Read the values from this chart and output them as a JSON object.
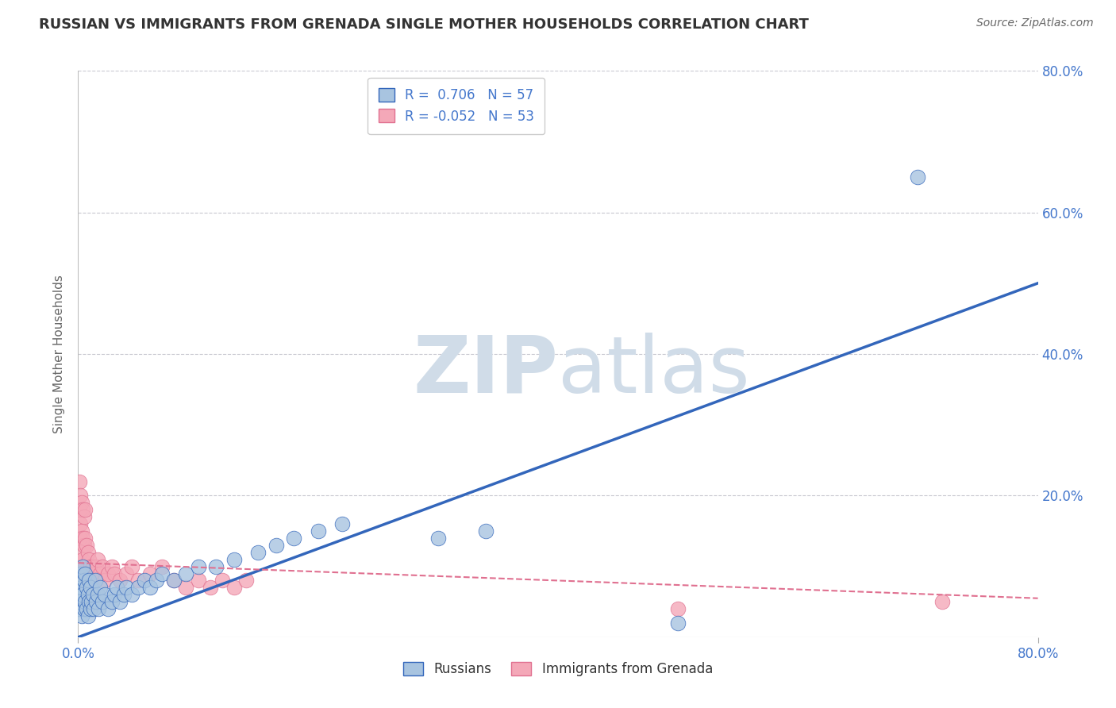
{
  "title": "RUSSIAN VS IMMIGRANTS FROM GRENADA SINGLE MOTHER HOUSEHOLDS CORRELATION CHART",
  "source": "Source: ZipAtlas.com",
  "ylabel": "Single Mother Households",
  "r_russian": 0.706,
  "n_russian": 57,
  "r_grenada": -0.052,
  "n_grenada": 53,
  "background_color": "#ffffff",
  "grid_color": "#c8c8d0",
  "blue_color": "#a8c4e0",
  "blue_line_color": "#3366bb",
  "pink_color": "#f4a8b8",
  "pink_line_color": "#e07090",
  "watermark_color": "#d0dce8",
  "title_color": "#333333",
  "axis_label_color": "#4477cc",
  "russians_scatter_x": [
    0.001,
    0.001,
    0.002,
    0.002,
    0.003,
    0.003,
    0.004,
    0.004,
    0.005,
    0.005,
    0.006,
    0.006,
    0.007,
    0.007,
    0.008,
    0.008,
    0.009,
    0.009,
    0.01,
    0.01,
    0.011,
    0.012,
    0.013,
    0.014,
    0.015,
    0.016,
    0.017,
    0.018,
    0.02,
    0.022,
    0.025,
    0.028,
    0.03,
    0.032,
    0.035,
    0.038,
    0.04,
    0.045,
    0.05,
    0.055,
    0.06,
    0.065,
    0.07,
    0.08,
    0.09,
    0.1,
    0.115,
    0.13,
    0.15,
    0.165,
    0.18,
    0.2,
    0.22,
    0.3,
    0.34,
    0.7,
    0.5
  ],
  "russians_scatter_y": [
    0.04,
    0.08,
    0.05,
    0.09,
    0.03,
    0.07,
    0.06,
    0.1,
    0.04,
    0.08,
    0.05,
    0.09,
    0.04,
    0.07,
    0.06,
    0.03,
    0.05,
    0.08,
    0.04,
    0.07,
    0.05,
    0.06,
    0.04,
    0.08,
    0.05,
    0.06,
    0.04,
    0.07,
    0.05,
    0.06,
    0.04,
    0.05,
    0.06,
    0.07,
    0.05,
    0.06,
    0.07,
    0.06,
    0.07,
    0.08,
    0.07,
    0.08,
    0.09,
    0.08,
    0.09,
    0.1,
    0.1,
    0.11,
    0.12,
    0.13,
    0.14,
    0.15,
    0.16,
    0.14,
    0.15,
    0.65,
    0.02
  ],
  "grenada_scatter_x": [
    0.001,
    0.001,
    0.001,
    0.002,
    0.002,
    0.002,
    0.003,
    0.003,
    0.003,
    0.004,
    0.004,
    0.004,
    0.005,
    0.005,
    0.005,
    0.006,
    0.006,
    0.006,
    0.007,
    0.007,
    0.008,
    0.008,
    0.009,
    0.009,
    0.01,
    0.01,
    0.011,
    0.012,
    0.013,
    0.014,
    0.015,
    0.016,
    0.018,
    0.02,
    0.022,
    0.025,
    0.028,
    0.03,
    0.035,
    0.04,
    0.045,
    0.05,
    0.06,
    0.07,
    0.08,
    0.09,
    0.1,
    0.11,
    0.12,
    0.13,
    0.14,
    0.5,
    0.72
  ],
  "grenada_scatter_y": [
    0.14,
    0.18,
    0.22,
    0.12,
    0.16,
    0.2,
    0.1,
    0.15,
    0.19,
    0.11,
    0.14,
    0.18,
    0.09,
    0.13,
    0.17,
    0.1,
    0.14,
    0.18,
    0.08,
    0.13,
    0.09,
    0.12,
    0.08,
    0.11,
    0.07,
    0.1,
    0.09,
    0.1,
    0.08,
    0.09,
    0.1,
    0.11,
    0.09,
    0.1,
    0.08,
    0.09,
    0.1,
    0.09,
    0.08,
    0.09,
    0.1,
    0.08,
    0.09,
    0.1,
    0.08,
    0.07,
    0.08,
    0.07,
    0.08,
    0.07,
    0.08,
    0.04,
    0.05
  ],
  "blue_trendline_x": [
    0.0,
    0.8
  ],
  "blue_trendline_y": [
    0.0,
    0.5
  ],
  "pink_trendline_x": [
    0.0,
    0.8
  ],
  "pink_trendline_y": [
    0.105,
    0.055
  ],
  "xlim": [
    0.0,
    0.8
  ],
  "ylim": [
    0.0,
    0.8
  ],
  "yticks": [
    0.0,
    0.2,
    0.4,
    0.6,
    0.8
  ],
  "ytick_labels": [
    "",
    "20.0%",
    "40.0%",
    "60.0%",
    "80.0%"
  ],
  "xtick_labels": [
    "0.0%",
    "80.0%"
  ]
}
